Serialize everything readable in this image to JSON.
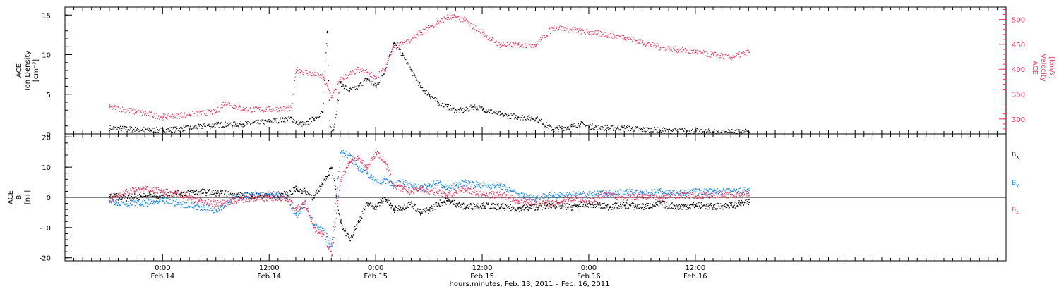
{
  "chart_data": [
    {
      "type": "scatter",
      "panel": "top",
      "ylabel": [
        "ACE",
        "Ion Density",
        "[cm⁻³]"
      ],
      "ylim": [
        0,
        16
      ],
      "yticks": [
        "0",
        "5",
        "10",
        "15"
      ],
      "ylabel_right": [
        "ACE",
        "Velocity",
        "[km/s]"
      ],
      "ylim_right": [
        270,
        525
      ],
      "yticks_right": [
        "300",
        "350",
        "400",
        "450",
        "500"
      ],
      "colors": {
        "density": "#000000",
        "velocity": "#e8365d"
      },
      "series": [
        {
          "axis": "left",
          "color": "#000000",
          "x": [
            -6,
            -3,
            0,
            3,
            6,
            9,
            12,
            14.5,
            15,
            16,
            17,
            18,
            18.5,
            18.8,
            19.2,
            20,
            21,
            22,
            23,
            24,
            25,
            26,
            27,
            28,
            29,
            30,
            31,
            32,
            33,
            34,
            35,
            36,
            38,
            40,
            42,
            44,
            46,
            47,
            48,
            50,
            52,
            54,
            56,
            60,
            62,
            64,
            66
          ],
          "y": [
            0.8,
            0.6,
            0.5,
            0.8,
            1.2,
            1.3,
            1.6,
            2.0,
            1.5,
            1.2,
            2.0,
            2.8,
            13.0,
            1.0,
            0.6,
            6.5,
            5.5,
            6.0,
            7.0,
            6.0,
            8.0,
            11.5,
            10.0,
            8.0,
            6.0,
            5.0,
            4.0,
            3.5,
            3.0,
            3.0,
            3.5,
            3.2,
            2.5,
            2.2,
            2.0,
            0.6,
            1.0,
            1.3,
            1.0,
            0.8,
            0.8,
            0.6,
            0.5,
            0.4,
            0.3,
            0.3,
            0.3
          ]
        },
        {
          "axis": "right",
          "color": "#e8365d",
          "x": [
            -6,
            -3,
            0,
            3,
            6,
            7,
            9,
            12,
            14.5,
            15,
            17,
            18,
            19,
            20,
            22,
            23,
            24,
            25,
            26,
            27,
            28,
            29,
            30,
            31,
            32,
            33,
            34,
            35,
            36,
            37,
            38,
            40,
            42,
            44,
            46,
            48,
            50,
            52,
            54,
            56,
            58,
            60,
            62,
            64,
            66
          ],
          "y": [
            325,
            315,
            305,
            310,
            315,
            335,
            320,
            320,
            322,
            400,
            390,
            385,
            345,
            380,
            400,
            395,
            385,
            400,
            445,
            455,
            460,
            475,
            485,
            495,
            505,
            505,
            500,
            485,
            475,
            460,
            450,
            450,
            450,
            485,
            480,
            475,
            470,
            465,
            455,
            445,
            440,
            435,
            430,
            425,
            435
          ]
        }
      ]
    },
    {
      "type": "line",
      "panel": "bottom",
      "ylabel": [
        "ACE",
        "B",
        "[nT]"
      ],
      "ylim": [
        -21,
        21
      ],
      "yticks": [
        "-20",
        "-10",
        "0",
        "10",
        "20"
      ],
      "zero_line": true,
      "legend_placement": "right",
      "series": [
        {
          "name": "Bx",
          "color": "#000000",
          "x": [
            -6,
            -4,
            -2,
            0,
            2,
            4,
            6,
            8,
            10,
            12,
            14,
            15,
            16,
            17,
            18,
            19,
            20,
            21,
            22,
            23,
            24,
            25,
            26,
            27,
            28,
            29,
            30,
            31,
            32,
            33,
            34,
            36,
            38,
            40,
            42,
            44,
            46,
            48,
            50,
            52,
            54,
            56,
            58,
            60,
            62,
            64,
            66
          ],
          "y": [
            0.5,
            0.0,
            0.5,
            1.0,
            1.5,
            2.0,
            1.5,
            1.0,
            0.5,
            1.0,
            1.0,
            3.0,
            2.0,
            0.0,
            5.0,
            10.0,
            -8.0,
            -14.0,
            -8.0,
            -2.0,
            -3.0,
            0.0,
            -4.0,
            -3.0,
            -2.0,
            -5.0,
            -4.0,
            -2.0,
            -1.0,
            -2.0,
            -3.0,
            -2.5,
            -3.0,
            -3.5,
            -3.0,
            -2.5,
            -3.0,
            -2.0,
            -3.0,
            -2.5,
            -3.0,
            -2.0,
            -3.0,
            -2.5,
            -3.0,
            -2.5,
            -1.5
          ]
        },
        {
          "name": "By",
          "color": "#1e88e5",
          "x": [
            -6,
            -4,
            -2,
            0,
            2,
            4,
            6,
            8,
            10,
            12,
            14,
            15,
            16,
            17,
            18,
            19,
            20,
            21,
            22,
            23,
            24,
            25,
            26,
            27,
            28,
            29,
            30,
            31,
            32,
            33,
            34,
            36,
            38,
            40,
            42,
            44,
            46,
            48,
            50,
            52,
            54,
            56,
            58,
            60,
            62,
            64,
            66
          ],
          "y": [
            -1.0,
            -2.0,
            -2.0,
            -1.0,
            -2.0,
            -3.0,
            -4.0,
            0.0,
            1.0,
            1.0,
            0.0,
            -6.0,
            -2.0,
            -9.0,
            -10.0,
            -16.0,
            15.0,
            14.0,
            10.0,
            8.0,
            5.0,
            6.0,
            4.0,
            5.0,
            4.0,
            3.0,
            4.0,
            5.0,
            3.0,
            4.0,
            5.0,
            4.0,
            4.0,
            1.0,
            0.0,
            1.0,
            1.0,
            1.0,
            1.5,
            2.0,
            1.5,
            2.0,
            1.5,
            2.0,
            2.0,
            2.0,
            2.5
          ]
        },
        {
          "name": "Bz",
          "color": "#e8365d",
          "x": [
            -6,
            -4,
            -2,
            0,
            2,
            4,
            6,
            8,
            10,
            12,
            14,
            15,
            16,
            17,
            18,
            19,
            20,
            21,
            22,
            23,
            24,
            25,
            26,
            27,
            28,
            29,
            30,
            31,
            32,
            33,
            34,
            36,
            38,
            40,
            42,
            44,
            46,
            48,
            50,
            52,
            54,
            56,
            58,
            60,
            62,
            64,
            66
          ],
          "y": [
            -1.0,
            2.0,
            3.0,
            2.0,
            1.0,
            -1.0,
            -2.0,
            -1.0,
            0.0,
            0.0,
            0.0,
            -4.0,
            -2.0,
            -10.0,
            -12.0,
            -19.0,
            6.0,
            12.0,
            13.0,
            10.0,
            15.0,
            12.0,
            4.0,
            3.0,
            2.0,
            3.0,
            2.0,
            2.0,
            1.0,
            2.0,
            3.0,
            1.0,
            1.0,
            -1.0,
            -1.5,
            -2.0,
            0.0,
            -1.0,
            1.0,
            0.0,
            0.5,
            0.0,
            1.0,
            0.5,
            1.0,
            1.0,
            1.0
          ]
        }
      ]
    }
  ],
  "x_axis": {
    "range_hours": [
      -11,
      95
    ],
    "ticks": [
      {
        "hour": 0,
        "time": "0:00",
        "date": "Feb.14"
      },
      {
        "hour": 12,
        "time": "12:00",
        "date": "Feb.14"
      },
      {
        "hour": 24,
        "time": "0:00",
        "date": "Feb.15"
      },
      {
        "hour": 36,
        "time": "12:00",
        "date": "Feb.15"
      },
      {
        "hour": 48,
        "time": "0:00",
        "date": "Feb.16"
      },
      {
        "hour": 60,
        "time": "12:00",
        "date": "Feb.16"
      }
    ],
    "xlabel": "hours:minutes, Feb. 13, 2011 – Feb. 16, 2011"
  },
  "legend": {
    "bx": {
      "main": "B",
      "sub": "x"
    },
    "by": {
      "main": "B",
      "sub": "y"
    },
    "bz": {
      "main": "B",
      "sub": "z"
    }
  }
}
